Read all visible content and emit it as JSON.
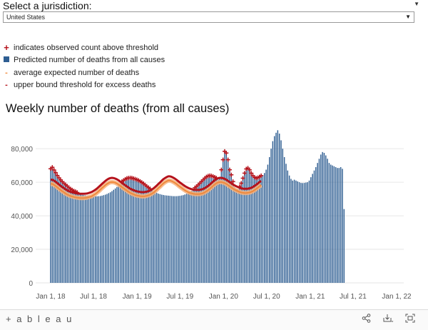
{
  "filter": {
    "title": "Select a jurisdiction:",
    "selected": "United States"
  },
  "legend": {
    "items": [
      {
        "marker": "+",
        "label": "indicates observed count above threshold"
      },
      {
        "marker": "square",
        "label": "Predicted number of deaths from all causes"
      },
      {
        "marker": "-",
        "label": "average expected number of deaths"
      },
      {
        "marker": "-",
        "label": "upper bound threshold for excess deaths"
      }
    ]
  },
  "footer": {
    "logo": "+ a b l e a u"
  },
  "colors": {
    "bar": "#2e5e92",
    "average_line": "#f08a3c",
    "average_band": "#f6b27e",
    "threshold_line": "#b5121b",
    "marker": "#b5121b",
    "grid": "#e6e6e6"
  },
  "chart_data": {
    "type": "bar",
    "title": "Weekly number of deaths (from all causes)",
    "x_tick_labels": [
      "Jan 1, 18",
      "Jul 1, 18",
      "Jan 1, 19",
      "Jul 1, 19",
      "Jan 1, 20",
      "Jul 1, 20",
      "Jan 1, 21",
      "Jul 1, 21",
      "Jan 1, 22"
    ],
    "y_tick_labels": [
      "0",
      "20,000",
      "40,000",
      "60,000",
      "80,000"
    ],
    "ylim": [
      0,
      92000
    ],
    "grid": true,
    "series": [
      {
        "name": "Predicted number of deaths from all causes",
        "x_start": "2018-01-01",
        "x_step_days": 7,
        "values": [
          67600,
          68500,
          66900,
          65300,
          63600,
          62200,
          61000,
          59900,
          59000,
          58100,
          57300,
          56400,
          55600,
          55000,
          54400,
          54000,
          53500,
          53100,
          52800,
          52500,
          52400,
          52200,
          52000,
          51800,
          51700,
          51700,
          51600,
          51600,
          51600,
          51700,
          51800,
          52000,
          52300,
          52600,
          53000,
          53500,
          54000,
          54700,
          55500,
          56300,
          57200,
          58100,
          59000,
          60000,
          60700,
          61400,
          61900,
          62100,
          62200,
          62100,
          61800,
          61500,
          61100,
          60700,
          60100,
          59500,
          58800,
          58000,
          57200,
          56400,
          55700,
          55100,
          54500,
          54000,
          53600,
          53200,
          52900,
          52600,
          52400,
          52200,
          52100,
          52000,
          51900,
          51800,
          51700,
          51700,
          51700,
          51800,
          51900,
          52100,
          52300,
          52700,
          53100,
          53600,
          54300,
          54900,
          55600,
          56300,
          57100,
          58000,
          59000,
          60000,
          61000,
          62000,
          62800,
          63300,
          63500,
          63400,
          63000,
          62600,
          62100,
          61500,
          62500,
          67000,
          73000,
          78000,
          77000,
          73000,
          67000,
          64000,
          60000,
          57000,
          56000,
          56000,
          57000,
          59000,
          62000,
          65000,
          67500,
          68000,
          67000,
          65000,
          63500,
          62500,
          62000,
          62300,
          62800,
          63500,
          64300,
          65500,
          67500,
          70500,
          75000,
          80000,
          84500,
          87500,
          89500,
          91000,
          89000,
          85000,
          80000,
          75000,
          71000,
          67000,
          64000,
          62000,
          61000,
          61500,
          61000,
          60500,
          60000,
          59600,
          59500,
          59600,
          59800,
          60000,
          61000,
          63000,
          65000,
          67000,
          69000,
          71500,
          74000,
          76500,
          78000,
          77500,
          76000,
          74000,
          71500,
          70500,
          70000,
          69500,
          69000,
          68500,
          68500,
          69000,
          68000,
          44000
        ]
      },
      {
        "name": "average expected number of deaths",
        "x_start": "2018-01-01",
        "x_step_days": 7,
        "values": [
          59000,
          59000,
          58500,
          57800,
          57000,
          56200,
          55400,
          54600,
          54000,
          53300,
          52700,
          52200,
          51800,
          51500,
          51200,
          51000,
          50800,
          50700,
          50600,
          50600,
          50600,
          50700,
          50800,
          51100,
          51400,
          51800,
          52400,
          53000,
          53800,
          54700,
          55600,
          56500,
          57400,
          58300,
          59000,
          59600,
          60000,
          60100,
          60000,
          59700,
          59200,
          58600,
          57900,
          57100,
          56400,
          55700,
          55000,
          54300,
          53700,
          53200,
          52800,
          52400,
          52100,
          51900,
          51700,
          51600,
          51600,
          51700,
          51900,
          52200,
          52600,
          53100,
          53800,
          54600,
          55500,
          56500,
          57400,
          58400,
          59300,
          60000,
          60600,
          61000,
          61000,
          60700,
          60200,
          59600,
          58900,
          58100,
          57300,
          56600,
          55900,
          55200,
          54600,
          54100,
          53700,
          53400,
          53100,
          53000,
          52900,
          52900,
          53000,
          53200,
          53500,
          54000,
          54600,
          55300,
          56100,
          57000,
          57900,
          58700,
          59400,
          59900,
          60100,
          60100,
          59900,
          59500,
          59000,
          58300,
          57600,
          56900,
          56200,
          55600,
          55100,
          54600,
          54200,
          53900,
          53700,
          53600,
          53600,
          53700,
          53900,
          54200,
          54700,
          55300,
          56000,
          56800,
          57600,
          58300
        ]
      },
      {
        "name": "upper bound threshold for excess deaths",
        "x_start": "2018-01-01",
        "x_step_days": 7,
        "values": [
          61500,
          61500,
          61000,
          60300,
          59500,
          58700,
          57900,
          57100,
          56500,
          55800,
          55200,
          54700,
          54300,
          54000,
          53700,
          53500,
          53300,
          53200,
          53100,
          53100,
          53100,
          53200,
          53300,
          53600,
          53900,
          54300,
          54900,
          55500,
          56300,
          57200,
          58100,
          59000,
          59900,
          60800,
          61500,
          62100,
          62500,
          62600,
          62500,
          62200,
          61700,
          61100,
          60400,
          59600,
          58900,
          58200,
          57500,
          56800,
          56200,
          55700,
          55300,
          54900,
          54600,
          54400,
          54200,
          54100,
          54100,
          54200,
          54400,
          54700,
          55100,
          55600,
          56300,
          57100,
          58000,
          59000,
          59900,
          60900,
          61800,
          62500,
          63100,
          63500,
          63500,
          63200,
          62700,
          62100,
          61400,
          60600,
          59800,
          59100,
          58400,
          57700,
          57100,
          56600,
          56200,
          55900,
          55600,
          55500,
          55400,
          55400,
          55500,
          55700,
          56000,
          56500,
          57100,
          57800,
          58600,
          59500,
          60400,
          61200,
          61900,
          62400,
          62600,
          62600,
          62400,
          62000,
          61500,
          60800,
          60100,
          59400,
          58700,
          58100,
          57600,
          57100,
          56700,
          56400,
          56200,
          56100,
          56100,
          56200,
          56400,
          56700,
          57200,
          57800,
          58500,
          59300,
          60100,
          60800
        ]
      }
    ]
  }
}
